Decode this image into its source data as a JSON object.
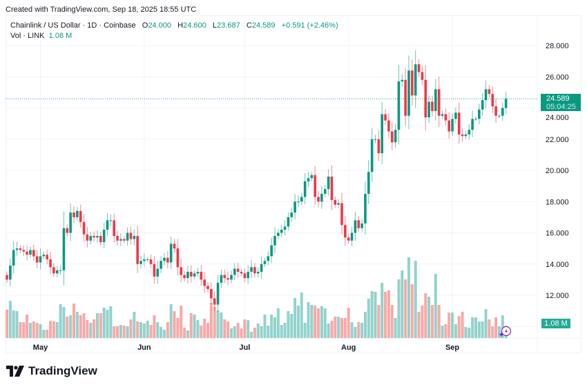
{
  "credit": "Created with TradingView.com, Sep 18, 2025 18:55 UTC",
  "legend": {
    "symbol": "Chainlink / US Dollar · 1D · Coinbase",
    "open_label": "O",
    "open": "24.000",
    "high_label": "H",
    "high": "24.600",
    "low_label": "L",
    "low": "23.687",
    "close_label": "C",
    "close": "24.589",
    "change": "+0.591 (+2.46%)",
    "vol_label": "Vol · LINK",
    "vol": "1.08 M"
  },
  "last_price": {
    "price": "24.589",
    "countdown": "05:04:25"
  },
  "volume_label": "1.08 M",
  "brand": "TradingView",
  "colors": {
    "up": "#089981",
    "down": "#F23645",
    "up_volume": "#92d2cc",
    "down_volume": "#f7a9a7",
    "grid": "#f0f3fa"
  },
  "icons": {
    "logo": "tradingview-logo-icon",
    "assistant": "lightning-sparkle-icon"
  },
  "chart_data": {
    "type": "candlestick",
    "title": "Chainlink / US Dollar · 1D · Coinbase",
    "x_range": [
      "2025-04-21",
      "2025-09-18"
    ],
    "x_ticks": [
      {
        "label": "May",
        "date": "2025-05-01"
      },
      {
        "label": "Jun",
        "date": "2025-06-01"
      },
      {
        "label": "Jul",
        "date": "2025-07-01"
      },
      {
        "label": "Aug",
        "date": "2025-08-01"
      },
      {
        "label": "Sep",
        "date": "2025-09-01"
      }
    ],
    "ylim": [
      10,
      28.8
    ],
    "y_ticks": [
      "28.000",
      "26.000",
      "24.000",
      "22.000",
      "20.000",
      "18.000",
      "16.000",
      "14.000",
      "12.000"
    ],
    "grid": true,
    "first_open": 13.3,
    "closes": [
      13.0,
      13.9,
      14.9,
      15.0,
      14.9,
      14.8,
      14.6,
      14.9,
      14.5,
      14.1,
      14.5,
      14.6,
      14.3,
      13.8,
      13.4,
      13.6,
      13.6,
      16.3,
      16.0,
      17.3,
      17.0,
      17.4,
      16.7,
      15.9,
      15.5,
      15.8,
      15.7,
      15.8,
      15.4,
      16.2,
      16.8,
      16.8,
      15.8,
      15.5,
      15.6,
      15.5,
      16.0,
      15.6,
      15.8,
      14.0,
      14.2,
      14.3,
      14.3,
      14.0,
      13.2,
      13.7,
      14.2,
      14.4,
      14.1,
      15.3,
      15.0,
      13.8,
      13.3,
      13.1,
      13.5,
      13.2,
      13.4,
      13.5,
      13.0,
      12.6,
      12.4,
      11.8,
      11.4,
      12.8,
      13.3,
      13.1,
      13.0,
      13.3,
      13.7,
      13.5,
      13.4,
      13.1,
      13.5,
      13.8,
      13.4,
      13.5,
      14.0,
      14.2,
      14.5,
      15.2,
      15.8,
      16.0,
      16.2,
      16.4,
      17.0,
      17.3,
      18.0,
      18.0,
      18.3,
      19.3,
      19.5,
      19.7,
      18.3,
      18.0,
      18.5,
      18.8,
      19.6,
      18.1,
      17.8,
      17.9,
      16.5,
      15.7,
      15.5,
      16.0,
      16.8,
      16.3,
      16.6,
      18.5,
      19.9,
      22.0,
      22.0,
      21.1,
      23.6,
      23.2,
      22.5,
      21.8,
      22.6,
      25.7,
      25.8,
      23.5,
      26.4,
      24.8,
      26.8,
      26.3,
      25.8,
      23.4,
      24.4,
      23.8,
      25.2,
      23.5,
      23.6,
      23.2,
      22.5,
      23.3,
      23.7,
      22.3,
      22.2,
      22.3,
      22.6,
      23.3,
      23.3,
      23.9,
      24.5,
      25.2,
      24.9,
      24.1,
      23.5,
      23.5,
      24.0,
      24.589
    ],
    "volume_unit": "M",
    "volumes": [
      2.46,
      3.24,
      2.4,
      2.34,
      1.38,
      1.38,
      2.04,
      1.32,
      1.44,
      1.32,
      1.2,
      0.72,
      0.72,
      1.5,
      1.44,
      1.38,
      2.94,
      2.7,
      1.86,
      1.98,
      3.0,
      2.28,
      1.98,
      2.16,
      1.56,
      1.32,
      1.62,
      2.16,
      2.16,
      2.64,
      2.46,
      2.76,
      1.02,
      1.02,
      1.14,
      1.08,
      1.02,
      1.62,
      2.28,
      1.44,
      1.38,
      1.26,
      1.5,
      1.14,
      1.98,
      1.38,
      0.96,
      0.72,
      1.38,
      2.94,
      2.34,
      1.74,
      2.82,
      0.9,
      0.66,
      2.16,
      2.04,
      1.56,
      1.08,
      1.68,
      1.32,
      3.06,
      2.7,
      2.4,
      2.22,
      1.62,
      1.44,
      0.84,
      1.02,
      1.32,
      0.84,
      1.62,
      1.56,
      0.54,
      0.9,
      1.26,
      1.02,
      2.04,
      1.08,
      2.04,
      1.8,
      2.58,
      1.14,
      1.32,
      2.34,
      2.1,
      3.48,
      2.82,
      3.96,
      1.32,
      3.12,
      2.88,
      2.82,
      2.58,
      2.76,
      2.58,
      1.26,
      1.5,
      1.86,
      1.86,
      1.74,
      1.74,
      2.64,
      1.38,
      0.96,
      1.38,
      1.32,
      2.28,
      3.42,
      4.08,
      4.02,
      2.88,
      4.8,
      4.02,
      4.14,
      2.88,
      1.74,
      5.1,
      5.88,
      5.1,
      7.02,
      4.68,
      6.72,
      2.28,
      2.82,
      3.9,
      3.6,
      2.88,
      5.58,
      2.88,
      1.08,
      1.2,
      2.22,
      2.22,
      1.2,
      1.92,
      2.28,
      0.96,
      0.9,
      1.8,
      1.8,
      1.44,
      1.44,
      2.52,
      1.62,
      1.02,
      1.8,
      1.02,
      1.98,
      1.08
    ]
  }
}
